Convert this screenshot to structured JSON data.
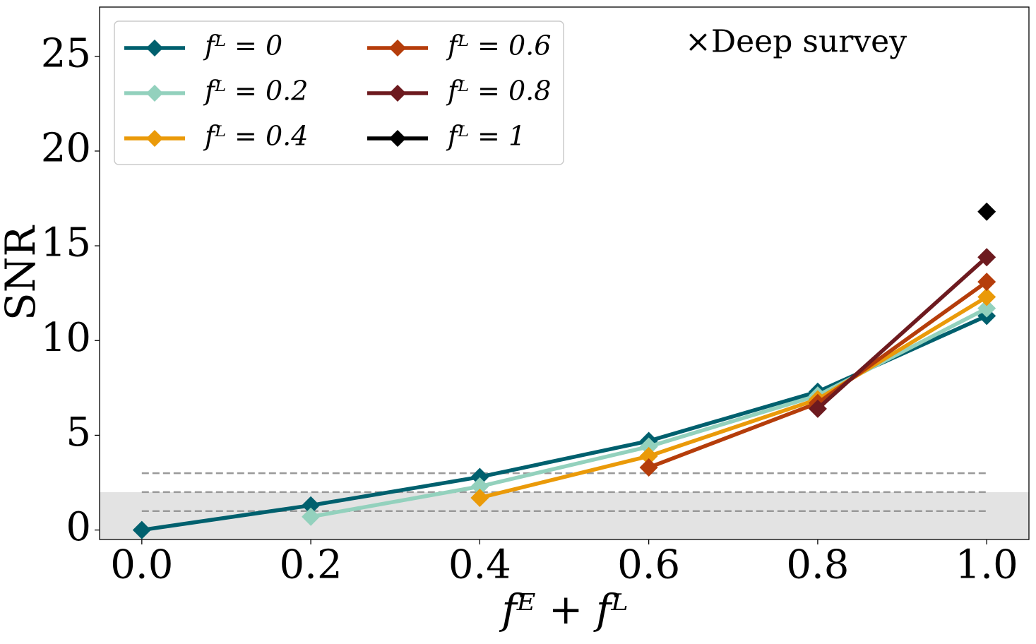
{
  "chart_data": {
    "type": "line",
    "xlabel": "fᴱ + fᴸ",
    "ylabel": "SNR",
    "annotation": "×Deep survey",
    "x": [
      0,
      0.2,
      0.4,
      0.6,
      0.8,
      1
    ],
    "series": [
      {
        "name": "fᴸ = 0",
        "color": "#00606e",
        "values": [
          0,
          1.3,
          2.8,
          4.7,
          7.3,
          11.3
        ]
      },
      {
        "name": "fᴸ = 0.2",
        "color": "#93d1bd",
        "values": [
          null,
          0.7,
          2.3,
          4.4,
          7.1,
          11.7
        ]
      },
      {
        "name": "fᴸ = 0.4",
        "color": "#ea9a09",
        "values": [
          null,
          null,
          1.7,
          3.9,
          6.9,
          12.3
        ]
      },
      {
        "name": "fᴸ = 0.6",
        "color": "#b53d0b",
        "values": [
          null,
          null,
          null,
          3.3,
          6.7,
          13.1
        ]
      },
      {
        "name": "fᴸ = 0.8",
        "color": "#6d1a1f",
        "values": [
          null,
          null,
          null,
          null,
          6.4,
          14.4
        ]
      },
      {
        "name": "fᴸ = 1",
        "color": "#000000",
        "values": [
          null,
          null,
          null,
          null,
          null,
          16.8
        ]
      }
    ],
    "xlim": [
      -0.05,
      1.05
    ],
    "ylim": [
      -0.5,
      27.6
    ],
    "xticks": [
      {
        "value": 0,
        "label": "0.0"
      },
      0.2,
      0.4,
      0.6,
      0.8,
      {
        "value": 1,
        "label": "1.0"
      }
    ],
    "yticks": [
      0,
      5,
      10,
      15,
      20,
      25
    ],
    "hlines": [
      1,
      2,
      3
    ],
    "shade_below": 2,
    "legend": "upper left",
    "legend_columns": 2
  }
}
